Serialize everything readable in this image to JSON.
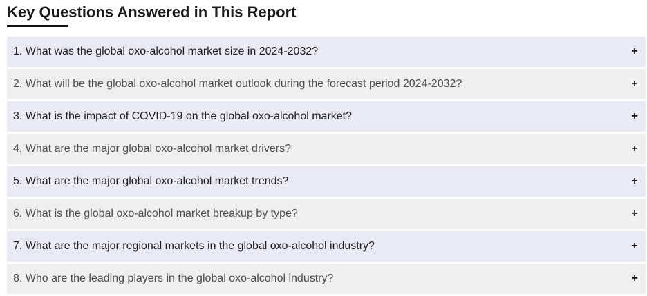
{
  "section": {
    "title": "Key Questions Answered in This Report"
  },
  "faq": {
    "expand_icon": "plus-icon",
    "expand_glyph": "+",
    "items": [
      {
        "question": "1. What was the global oxo-alcohol market size in 2024-2032?"
      },
      {
        "question": "2. What will be the global oxo-alcohol market outlook during the forecast period 2024-2032?"
      },
      {
        "question": "3. What is the impact of COVID-19 on the global oxo-alcohol market?"
      },
      {
        "question": "4. What are the major global oxo-alcohol market drivers?"
      },
      {
        "question": "5. What are the major global oxo-alcohol market trends?"
      },
      {
        "question": "6. What is the global oxo-alcohol market breakup by type?"
      },
      {
        "question": "7. What are the major regional markets in the global oxo-alcohol industry?"
      },
      {
        "question": "8. Who are the leading players in the global oxo-alcohol industry?"
      }
    ]
  },
  "colors": {
    "row_odd": "#e8eaf6",
    "row_even": "#efefef",
    "heading_underline": "#111111"
  }
}
